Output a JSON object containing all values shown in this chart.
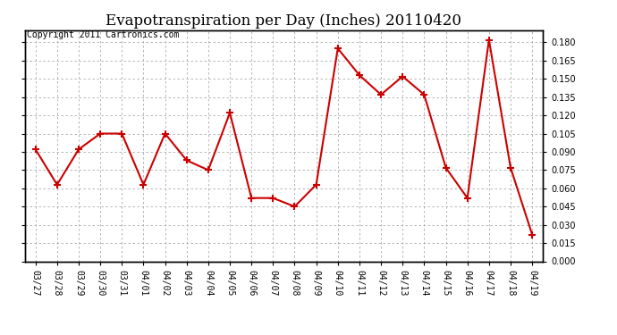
{
  "title": "Evapotranspiration per Day (Inches) 20110420",
  "copyright": "Copyright 2011 Cartronics.com",
  "x_labels": [
    "03/27",
    "03/28",
    "03/29",
    "03/30",
    "03/31",
    "04/01",
    "04/02",
    "04/03",
    "04/04",
    "04/05",
    "04/06",
    "04/07",
    "04/08",
    "04/09",
    "04/10",
    "04/11",
    "04/12",
    "04/13",
    "04/14",
    "04/15",
    "04/16",
    "04/17",
    "04/18",
    "04/19"
  ],
  "y_values": [
    0.092,
    0.063,
    0.092,
    0.105,
    0.105,
    0.063,
    0.105,
    0.083,
    0.075,
    0.122,
    0.052,
    0.052,
    0.045,
    0.063,
    0.175,
    0.153,
    0.137,
    0.152,
    0.137,
    0.077,
    0.052,
    0.182,
    0.077,
    0.022
  ],
  "line_color": "#cc0000",
  "marker": "+",
  "marker_size": 6,
  "marker_linewidth": 1.5,
  "linewidth": 1.5,
  "ylim": [
    0.0,
    0.19
  ],
  "yticks": [
    0.0,
    0.015,
    0.03,
    0.045,
    0.06,
    0.075,
    0.09,
    0.105,
    0.12,
    0.135,
    0.15,
    0.165,
    0.18
  ],
  "background_color": "#ffffff",
  "grid_color": "#aaaaaa",
  "title_fontsize": 12,
  "copyright_fontsize": 7,
  "tick_fontsize": 7,
  "fig_width": 6.9,
  "fig_height": 3.75,
  "dpi": 100
}
